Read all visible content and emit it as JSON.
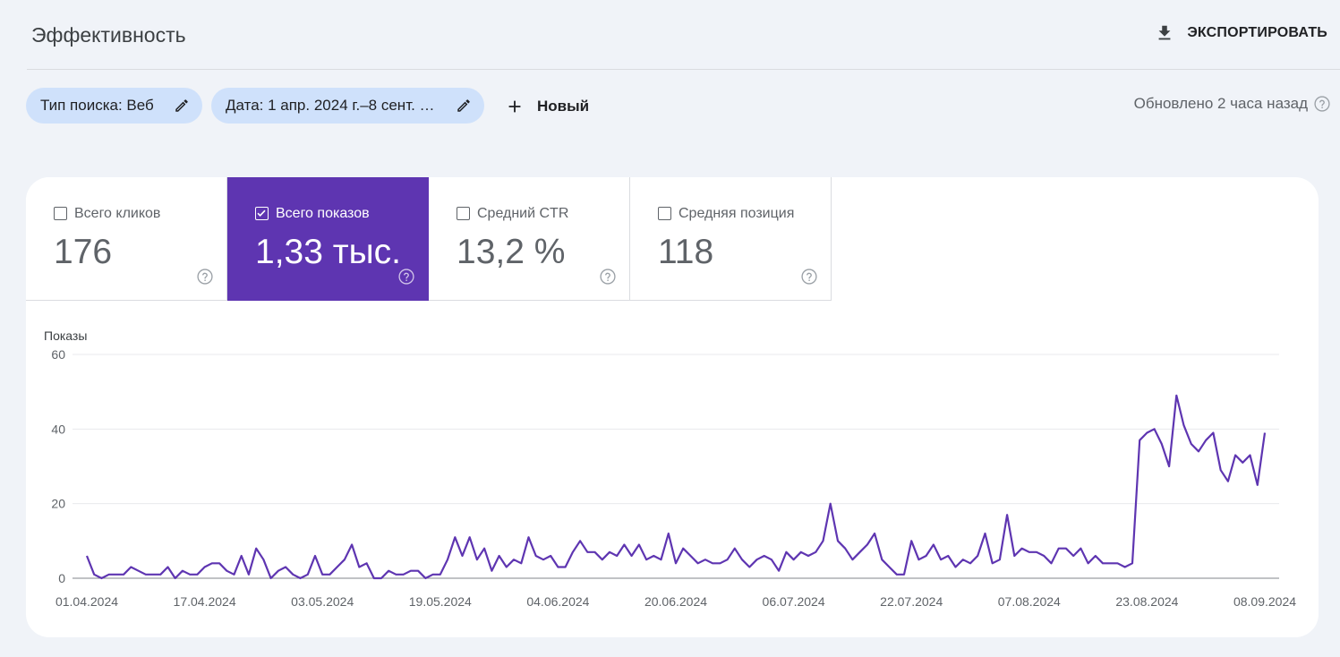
{
  "header": {
    "title": "Эффективность",
    "export_label": "ЭКСПОРТИРОВАТЬ"
  },
  "filters": {
    "search_type": "Тип поиска: Веб",
    "date": "Дата: 1 апр. 2024 г.–8 сент. …",
    "new_label": "Новый",
    "updated": "Обновлено 2 часа назад"
  },
  "metrics": [
    {
      "label": "Всего кликов",
      "value": "176",
      "checked": false
    },
    {
      "label": "Всего показов",
      "value": "1,33 тыс.",
      "checked": true
    },
    {
      "label": "Средний CTR",
      "value": "13,2 %",
      "checked": false
    },
    {
      "label": "Средняя позиция",
      "value": "118",
      "checked": false
    }
  ],
  "colors": {
    "accent": "#5e35b1",
    "chip": "#cfe1fb",
    "line": "#5e35b1"
  },
  "chart_data": {
    "type": "line",
    "ylabel": "Показы",
    "ylim": [
      0,
      60
    ],
    "yticks": [
      "0",
      "20",
      "40",
      "60"
    ],
    "xticks": [
      "01.04.2024",
      "17.04.2024",
      "03.05.2024",
      "19.05.2024",
      "04.06.2024",
      "20.06.2024",
      "06.07.2024",
      "22.07.2024",
      "07.08.2024",
      "23.08.2024",
      "08.09.2024"
    ],
    "start_date": "01.04.2024",
    "grid": true,
    "series": [
      {
        "values": [
          6,
          1,
          0,
          1,
          1,
          1,
          3,
          2,
          1,
          1,
          1,
          3,
          0,
          2,
          1,
          1,
          3,
          4,
          4,
          2,
          1,
          6,
          1,
          8,
          5,
          0,
          2,
          3,
          1,
          0,
          1,
          6,
          1,
          1,
          3,
          5,
          9,
          3,
          4,
          0,
          0,
          2,
          1,
          1,
          2,
          2,
          0,
          1,
          1,
          5,
          11,
          6,
          11,
          5,
          8,
          2,
          6,
          3,
          5,
          4,
          11,
          6,
          5,
          6,
          3,
          3,
          7,
          10,
          7,
          7,
          5,
          7,
          6,
          9,
          6,
          9,
          5,
          6,
          5,
          12,
          4,
          8,
          6,
          4,
          5,
          4,
          4,
          5,
          8,
          5,
          3,
          5,
          6,
          5,
          2,
          7,
          5,
          7,
          6,
          7,
          10,
          20,
          10,
          8,
          5,
          7,
          9,
          12,
          5,
          3,
          1,
          1,
          10,
          5,
          6,
          9,
          5,
          6,
          3,
          5,
          4,
          6,
          12,
          4,
          5,
          17,
          6,
          8,
          7,
          7,
          6,
          4,
          8,
          8,
          6,
          8,
          4,
          6,
          4,
          4,
          4,
          3,
          4,
          37,
          39,
          40,
          36,
          30,
          49,
          41,
          36,
          34,
          37,
          39,
          29,
          26,
          33,
          31,
          33,
          25,
          39
        ]
      }
    ]
  }
}
